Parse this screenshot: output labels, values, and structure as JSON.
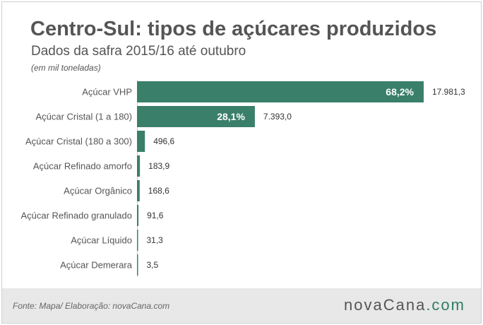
{
  "header": {
    "title": "Centro-Sul: tipos de açúcares produzidos",
    "subtitle": "Dados da safra 2015/16 até outubro",
    "unit": "(em mil toneladas)"
  },
  "footer": {
    "source": "Fonte: Mapa/ Elaboração: novaCana.com",
    "logo_main": "novaCana",
    "logo_domain": ".com"
  },
  "colors": {
    "bar": "#3a7f6a",
    "text": "#555555",
    "footer_bg": "#e8e8e8"
  },
  "chart_data": {
    "type": "bar",
    "orientation": "horizontal",
    "categories": [
      "Açúcar VHP",
      "Açúcar Cristal (1 a 180)",
      "Açúcar Cristal (180 a 300)",
      "Açúcar Refinado amorfo",
      "Açúcar Orgânico",
      "Açúcar Refinado granulado",
      "Açúcar Líquido",
      "Açúcar Demerara"
    ],
    "values": [
      17981.3,
      7393.0,
      496.6,
      183.9,
      168.6,
      91.6,
      31.3,
      3.5
    ],
    "value_labels": [
      "17.981,3",
      "7.393,0",
      "496,6",
      "183,9",
      "168,6",
      "91,6",
      "31,3",
      "3,5"
    ],
    "share_labels": [
      "68,2%",
      "28,1%",
      "",
      "",
      "",
      "",
      "",
      ""
    ],
    "xlim": [
      0,
      17981.3
    ],
    "grid": false,
    "legend": "none"
  }
}
